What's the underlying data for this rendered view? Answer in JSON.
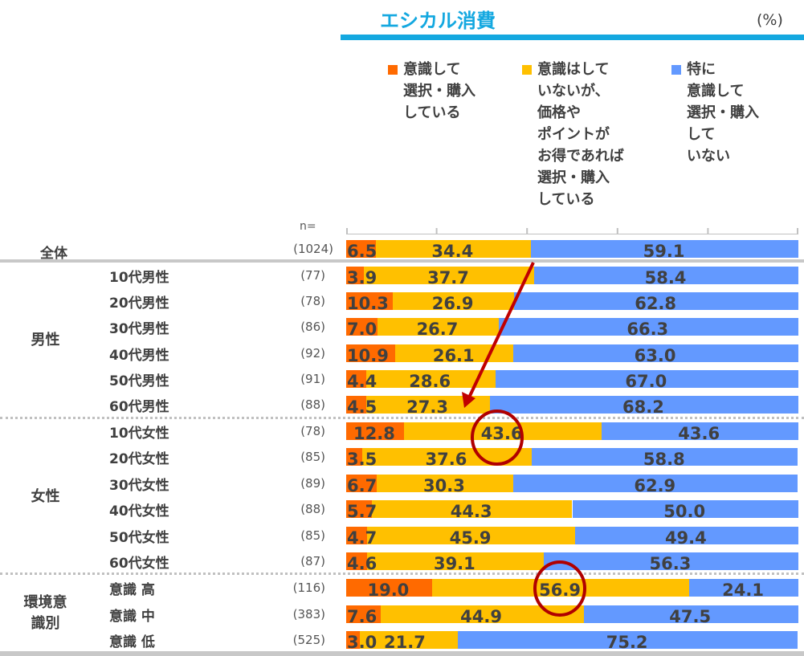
{
  "header": {
    "title": "エシカル消費",
    "unit": "(%)"
  },
  "n_label": "n=",
  "legend": [
    {
      "label": "意識して\n選択・購入\nしている",
      "color": "#ff6a00"
    },
    {
      "label": "意識はして\nいないが、\n価格や\nポイントが\nお得であれば\n選択・購入\nしている",
      "color": "#ffc000"
    },
    {
      "label": "特に\n意識して\n選択・購入\nして\nいない",
      "color": "#6399ff"
    }
  ],
  "groups": [
    {
      "label": "男性",
      "color": "#cdeafc"
    },
    {
      "label": "女性",
      "color": "#ffcccc"
    },
    {
      "label": "環境意\n識別",
      "color": "#f0f0f0"
    }
  ],
  "chart_data": {
    "type": "bar",
    "orientation": "horizontal",
    "stacked": true,
    "title": "エシカル消費",
    "unit": "%",
    "xlim": [
      0,
      100
    ],
    "x_ticks": [
      0,
      20,
      40,
      60,
      80,
      100
    ],
    "x_tick_labels_visible": false,
    "legend_position": "top",
    "series_names": [
      "意識して選択・購入している",
      "意識はしていないが、価格やポイントがお得であれば選択・購入している",
      "特に意識して選択・購入していない"
    ],
    "rows": [
      {
        "label": "全体",
        "n": "(1024)",
        "group": null,
        "values": [
          6.5,
          34.4,
          59.1
        ]
      },
      {
        "label": "10代男性",
        "n": "(77)",
        "group": "男性",
        "values": [
          3.9,
          37.7,
          58.4
        ]
      },
      {
        "label": "20代男性",
        "n": "(78)",
        "group": "男性",
        "values": [
          10.3,
          26.9,
          62.8
        ]
      },
      {
        "label": "30代男性",
        "n": "(86)",
        "group": "男性",
        "values": [
          7.0,
          26.7,
          66.3
        ]
      },
      {
        "label": "40代男性",
        "n": "(92)",
        "group": "男性",
        "values": [
          10.9,
          26.1,
          63.0
        ]
      },
      {
        "label": "50代男性",
        "n": "(91)",
        "group": "男性",
        "values": [
          4.4,
          28.6,
          67.0
        ]
      },
      {
        "label": "60代男性",
        "n": "(88)",
        "group": "男性",
        "values": [
          4.5,
          27.3,
          68.2
        ]
      },
      {
        "label": "10代女性",
        "n": "(78)",
        "group": "女性",
        "values": [
          12.8,
          43.6,
          43.6
        ]
      },
      {
        "label": "20代女性",
        "n": "(85)",
        "group": "女性",
        "values": [
          3.5,
          37.6,
          58.8
        ]
      },
      {
        "label": "30代女性",
        "n": "(89)",
        "group": "女性",
        "values": [
          6.7,
          30.3,
          62.9
        ]
      },
      {
        "label": "40代女性",
        "n": "(88)",
        "group": "女性",
        "values": [
          5.7,
          44.3,
          50.0
        ]
      },
      {
        "label": "50代女性",
        "n": "(85)",
        "group": "女性",
        "values": [
          4.7,
          45.9,
          49.4
        ]
      },
      {
        "label": "60代女性",
        "n": "(87)",
        "group": "女性",
        "values": [
          4.6,
          39.1,
          56.3
        ]
      },
      {
        "label": "意識 高",
        "n": "(116)",
        "group": "環境意識別",
        "values": [
          19.0,
          56.9,
          24.1
        ]
      },
      {
        "label": "意識 中",
        "n": "(383)",
        "group": "環境意識別",
        "values": [
          7.6,
          44.9,
          47.5
        ]
      },
      {
        "label": "意識 低",
        "n": "(525)",
        "group": "環境意識別",
        "values": [
          3.0,
          21.7,
          75.2
        ]
      }
    ],
    "annotations": [
      {
        "type": "arrow",
        "from_row": "全体",
        "to_row": "60代男性",
        "color": "#c00000"
      },
      {
        "type": "circle",
        "row": "10代女性",
        "series_index": 1,
        "value": 43.6,
        "color": "#b00000"
      },
      {
        "type": "circle",
        "row": "意識 高",
        "series_index": 1,
        "value": 56.9,
        "color": "#b00000"
      }
    ]
  }
}
